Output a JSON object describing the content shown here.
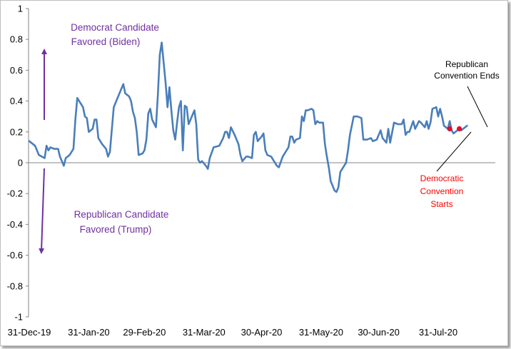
{
  "chart_data": {
    "type": "line",
    "title": "",
    "xlabel": "",
    "ylabel": "",
    "ylim": [
      -1,
      1
    ],
    "yticks": [
      "1",
      "0.8",
      "0.6",
      "0.4",
      "0.2",
      "0",
      "-0.2",
      "-0.4",
      "-0.6",
      "-0.8",
      "-1"
    ],
    "xticks": [
      "31-Dec-19",
      "31-Jan-20",
      "29-Feb-20",
      "31-Mar-20",
      "30-Apr-20",
      "31-May-20",
      "30-Jun-20",
      "31-Jul-20"
    ],
    "xtick_dates": [
      "2019-12-31",
      "2020-01-31",
      "2020-02-29",
      "2020-03-31",
      "2020-04-30",
      "2020-05-31",
      "2020-06-30",
      "2020-07-31"
    ],
    "line_color": "#4a7ebb",
    "grid": false,
    "series": [
      {
        "name": "",
        "points": [
          [
            "2019-12-31",
            0.14
          ],
          [
            "2020-01-03",
            0.11
          ],
          [
            "2020-01-05",
            0.05
          ],
          [
            "2020-01-08",
            0.03
          ],
          [
            "2020-01-09",
            0.11
          ],
          [
            "2020-01-10",
            0.08
          ],
          [
            "2020-01-11",
            0.1
          ],
          [
            "2020-01-13",
            0.09
          ],
          [
            "2020-01-15",
            0.09
          ],
          [
            "2020-01-16",
            0.04
          ],
          [
            "2020-01-18",
            -0.02
          ],
          [
            "2020-01-19",
            0.03
          ],
          [
            "2020-01-21",
            0.05
          ],
          [
            "2020-01-23",
            0.09
          ],
          [
            "2020-01-24",
            0.28
          ],
          [
            "2020-01-25",
            0.42
          ],
          [
            "2020-01-26",
            0.4
          ],
          [
            "2020-01-28",
            0.36
          ],
          [
            "2020-01-29",
            0.3
          ],
          [
            "2020-01-30",
            0.29
          ],
          [
            "2020-01-31",
            0.2
          ],
          [
            "2020-02-02",
            0.22
          ],
          [
            "2020-02-03",
            0.28
          ],
          [
            "2020-02-04",
            0.28
          ],
          [
            "2020-02-05",
            0.16
          ],
          [
            "2020-02-07",
            0.12
          ],
          [
            "2020-02-09",
            0.09
          ],
          [
            "2020-02-10",
            0.04
          ],
          [
            "2020-02-11",
            0.07
          ],
          [
            "2020-02-13",
            0.36
          ],
          [
            "2020-02-15",
            0.42
          ],
          [
            "2020-02-17",
            0.48
          ],
          [
            "2020-02-18",
            0.51
          ],
          [
            "2020-02-19",
            0.45
          ],
          [
            "2020-02-21",
            0.43
          ],
          [
            "2020-02-22",
            0.4
          ],
          [
            "2020-02-23",
            0.33
          ],
          [
            "2020-02-24",
            0.29
          ],
          [
            "2020-02-25",
            0.2
          ],
          [
            "2020-02-26",
            0.05
          ],
          [
            "2020-02-28",
            0.06
          ],
          [
            "2020-02-29",
            0.08
          ],
          [
            "2020-03-01",
            0.15
          ],
          [
            "2020-03-02",
            0.32
          ],
          [
            "2020-03-03",
            0.35
          ],
          [
            "2020-03-04",
            0.28
          ],
          [
            "2020-03-06",
            0.23
          ],
          [
            "2020-03-07",
            0.44
          ],
          [
            "2020-03-08",
            0.7
          ],
          [
            "2020-03-09",
            0.78
          ],
          [
            "2020-03-11",
            0.52
          ],
          [
            "2020-03-12",
            0.36
          ],
          [
            "2020-03-13",
            0.49
          ],
          [
            "2020-03-14",
            0.34
          ],
          [
            "2020-03-15",
            0.21
          ],
          [
            "2020-03-16",
            0.15
          ],
          [
            "2020-03-17",
            0.26
          ],
          [
            "2020-03-18",
            0.36
          ],
          [
            "2020-03-19",
            0.4
          ],
          [
            "2020-03-20",
            0.08
          ],
          [
            "2020-03-21",
            0.37
          ],
          [
            "2020-03-22",
            0.36
          ],
          [
            "2020-03-23",
            0.25
          ],
          [
            "2020-03-24",
            0.28
          ],
          [
            "2020-03-26",
            0.34
          ],
          [
            "2020-03-27",
            0.25
          ],
          [
            "2020-03-28",
            0.02
          ],
          [
            "2020-03-29",
            0.0
          ],
          [
            "2020-03-30",
            0.01
          ],
          [
            "2020-04-01",
            -0.02
          ],
          [
            "2020-04-02",
            -0.04
          ],
          [
            "2020-04-03",
            0.03
          ],
          [
            "2020-04-05",
            0.1
          ],
          [
            "2020-04-08",
            0.11
          ],
          [
            "2020-04-10",
            0.16
          ],
          [
            "2020-04-11",
            0.2
          ],
          [
            "2020-04-12",
            0.2
          ],
          [
            "2020-04-13",
            0.16
          ],
          [
            "2020-04-14",
            0.23
          ],
          [
            "2020-04-16",
            0.18
          ],
          [
            "2020-04-18",
            0.12
          ],
          [
            "2020-04-19",
            0.05
          ],
          [
            "2020-04-20",
            0.01
          ],
          [
            "2020-04-22",
            0.04
          ],
          [
            "2020-04-23",
            0.04
          ],
          [
            "2020-04-25",
            0.03
          ],
          [
            "2020-04-26",
            0.18
          ],
          [
            "2020-04-27",
            0.2
          ],
          [
            "2020-04-28",
            0.14
          ],
          [
            "2020-04-30",
            0.17
          ],
          [
            "2020-05-01",
            0.19
          ],
          [
            "2020-05-02",
            0.08
          ],
          [
            "2020-05-03",
            0.05
          ],
          [
            "2020-05-05",
            0.04
          ],
          [
            "2020-05-06",
            0.02
          ],
          [
            "2020-05-08",
            -0.02
          ],
          [
            "2020-05-09",
            -0.03
          ],
          [
            "2020-05-11",
            0.04
          ],
          [
            "2020-05-13",
            0.08
          ],
          [
            "2020-05-14",
            0.1
          ],
          [
            "2020-05-15",
            0.17
          ],
          [
            "2020-05-16",
            0.17
          ],
          [
            "2020-05-17",
            0.13
          ],
          [
            "2020-05-18",
            0.15
          ],
          [
            "2020-05-20",
            0.16
          ],
          [
            "2020-05-21",
            0.3
          ],
          [
            "2020-05-22",
            0.27
          ],
          [
            "2020-05-23",
            0.34
          ],
          [
            "2020-05-24",
            0.34
          ],
          [
            "2020-05-26",
            0.35
          ],
          [
            "2020-05-27",
            0.34
          ],
          [
            "2020-05-28",
            0.25
          ],
          [
            "2020-05-29",
            0.27
          ],
          [
            "2020-05-30",
            0.26
          ],
          [
            "2020-06-01",
            0.26
          ],
          [
            "2020-06-02",
            0.12
          ],
          [
            "2020-06-03",
            0.04
          ],
          [
            "2020-06-04",
            -0.03
          ],
          [
            "2020-06-05",
            -0.12
          ],
          [
            "2020-06-07",
            -0.18
          ],
          [
            "2020-06-08",
            -0.19
          ],
          [
            "2020-06-09",
            -0.16
          ],
          [
            "2020-06-10",
            -0.06
          ],
          [
            "2020-06-12",
            -0.02
          ],
          [
            "2020-06-13",
            0.0
          ],
          [
            "2020-06-14",
            0.08
          ],
          [
            "2020-06-15",
            0.18
          ],
          [
            "2020-06-17",
            0.3
          ],
          [
            "2020-06-19",
            0.3
          ],
          [
            "2020-06-21",
            0.29
          ],
          [
            "2020-06-22",
            0.15
          ],
          [
            "2020-06-24",
            0.15
          ],
          [
            "2020-06-26",
            0.16
          ],
          [
            "2020-06-27",
            0.14
          ],
          [
            "2020-06-29",
            0.15
          ],
          [
            "2020-07-01",
            0.21
          ],
          [
            "2020-07-02",
            0.16
          ],
          [
            "2020-07-04",
            0.13
          ],
          [
            "2020-07-05",
            0.22
          ],
          [
            "2020-07-06",
            0.13
          ],
          [
            "2020-07-08",
            0.26
          ],
          [
            "2020-07-10",
            0.25
          ],
          [
            "2020-07-12",
            0.25
          ],
          [
            "2020-07-13",
            0.28
          ],
          [
            "2020-07-14",
            0.18
          ],
          [
            "2020-07-15",
            0.2
          ],
          [
            "2020-07-16",
            0.2
          ],
          [
            "2020-07-18",
            0.27
          ],
          [
            "2020-07-19",
            0.22
          ],
          [
            "2020-07-21",
            0.27
          ],
          [
            "2020-07-22",
            0.26
          ],
          [
            "2020-07-24",
            0.23
          ],
          [
            "2020-07-25",
            0.27
          ],
          [
            "2020-07-26",
            0.22
          ],
          [
            "2020-07-27",
            0.26
          ],
          [
            "2020-07-28",
            0.35
          ],
          [
            "2020-07-30",
            0.36
          ],
          [
            "2020-07-31",
            0.3
          ],
          [
            "2020-08-01",
            0.35
          ],
          [
            "2020-08-02",
            0.3
          ],
          [
            "2020-08-03",
            0.24
          ],
          [
            "2020-08-05",
            0.22
          ],
          [
            "2020-08-06",
            0.27
          ],
          [
            "2020-08-07",
            0.21
          ],
          [
            "2020-08-08",
            0.19
          ],
          [
            "2020-08-09",
            0.2
          ],
          [
            "2020-08-10",
            0.21
          ],
          [
            "2020-08-11",
            0.23
          ],
          [
            "2020-08-12",
            0.21
          ],
          [
            "2020-08-13",
            0.22
          ],
          [
            "2020-08-15",
            0.24
          ]
        ]
      }
    ],
    "markers": [
      {
        "date": "2020-08-06",
        "value": 0.22,
        "color": "#e0102c"
      },
      {
        "date": "2020-08-11",
        "value": 0.22,
        "color": "#e0102c"
      }
    ],
    "annotations": {
      "democrat_line1": "Democrat Candidate",
      "democrat_line2": "Favored (Biden)",
      "republican_line1": "Republican Candidate",
      "republican_line2": "Favored (Trump)",
      "rep_conv_line1": "Republican",
      "rep_conv_line2": "Convention Ends",
      "dem_conv_line1": "Democratic",
      "dem_conv_line2": "Convention",
      "dem_conv_line3": "Starts"
    },
    "colors": {
      "annotation_purple": "#7030a0",
      "annotation_red": "#ff0000",
      "arrow_purple": "#7030a0"
    }
  }
}
